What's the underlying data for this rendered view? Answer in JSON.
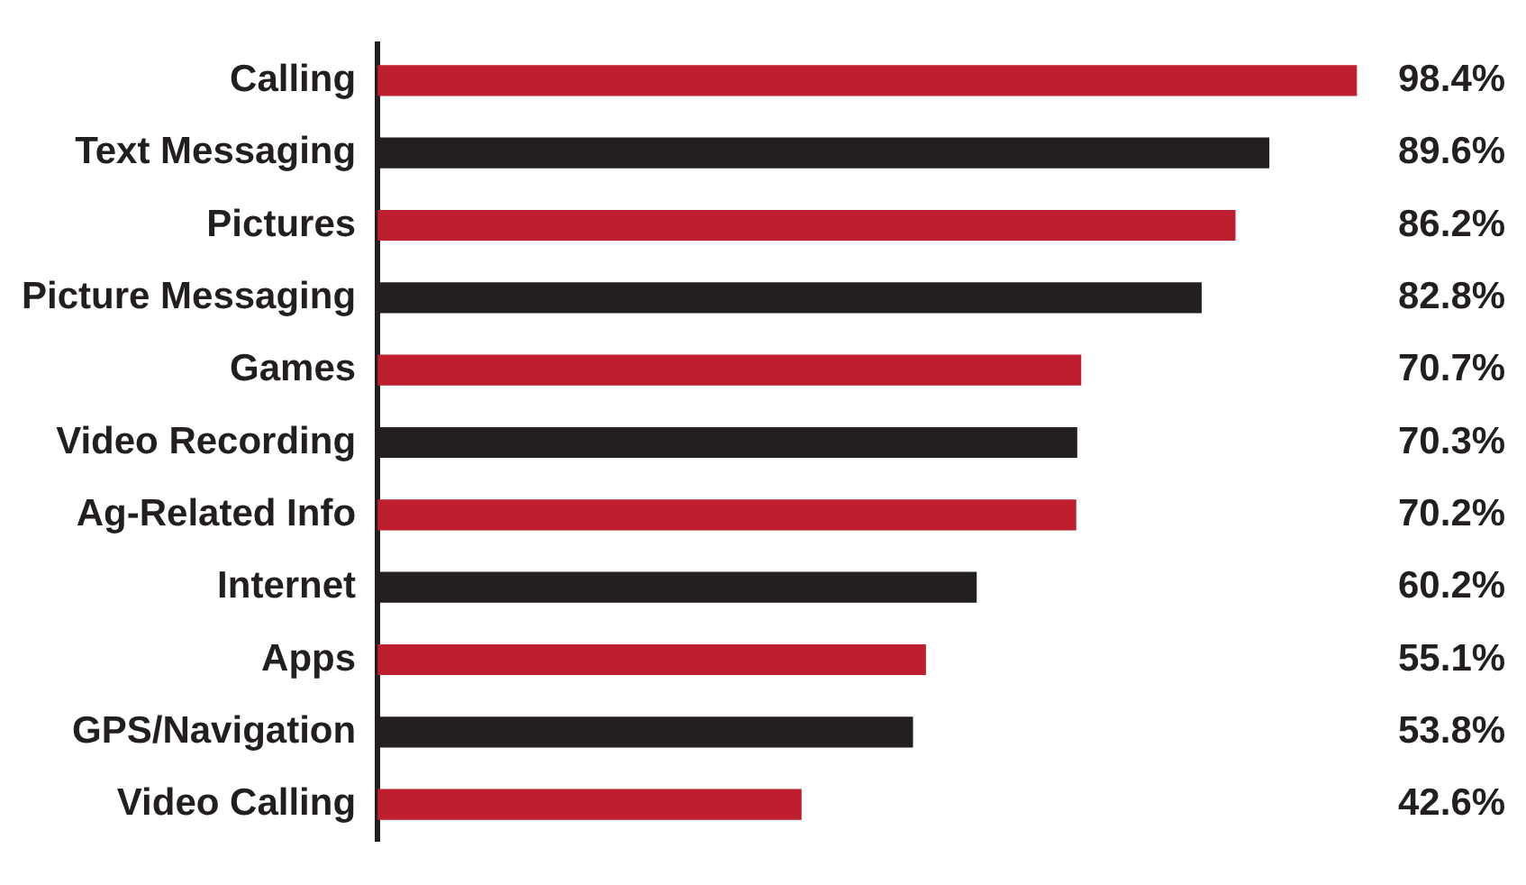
{
  "chart_data": {
    "type": "bar",
    "orientation": "horizontal",
    "categories": [
      "Calling",
      "Text Messaging",
      "Pictures",
      "Picture Messaging",
      "Games",
      "Video Recording",
      "Ag-Related Info",
      "Internet",
      "Apps",
      "GPS/Navigation",
      "Video Calling"
    ],
    "values": [
      98.4,
      89.6,
      86.2,
      82.8,
      70.7,
      70.3,
      70.2,
      60.2,
      55.1,
      53.8,
      42.6
    ],
    "colors": [
      "#be1e2d",
      "#231f20",
      "#be1e2d",
      "#231f20",
      "#be1e2d",
      "#231f20",
      "#be1e2d",
      "#231f20",
      "#be1e2d",
      "#231f20",
      "#be1e2d"
    ],
    "value_labels": [
      "98.4%",
      "89.6%",
      "86.2%",
      "82.8%",
      "70.7%",
      "70.3%",
      "70.2%",
      "60.2%",
      "55.1%",
      "53.8%",
      "42.6%"
    ],
    "legend": false
  }
}
